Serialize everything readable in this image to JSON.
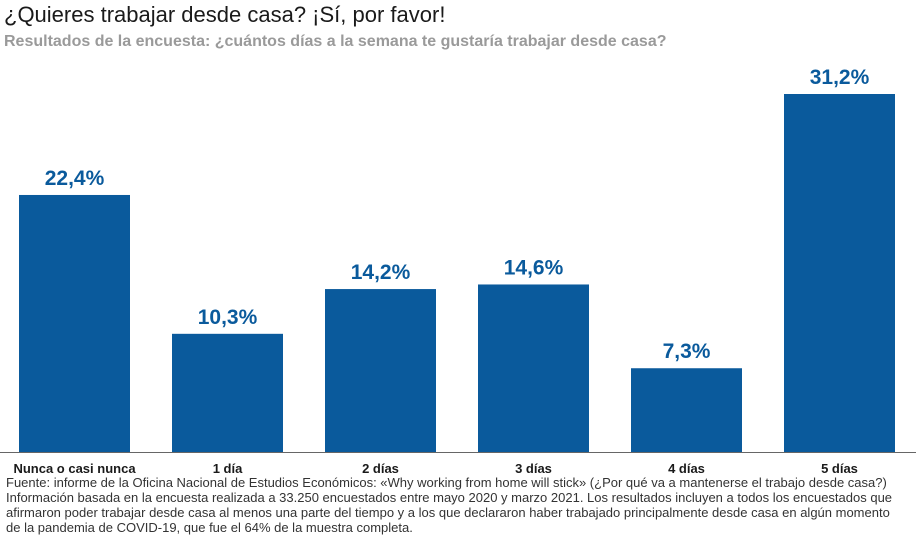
{
  "title": "¿Quieres trabajar desde casa? ¡Sí, por favor!",
  "subtitle": "Resultados de la encuesta: ¿cuántos días a la semana te gustaría trabajar desde casa?",
  "source": "Fuente: informe de la Oficina Nacional de Estudios Económicos: «Why working from home will stick» (¿Por qué va a mantenerse el trabajo desde casa?) Información basada en la encuesta realizada a 33.250 encuestados entre mayo 2020 y marzo 2021. Los resultados incluyen a todos los encuestados que afirmaron poder trabajar desde casa al menos una parte del tiempo y a los que declararon haber trabajado principalmente desde casa en algún momento de la pandemia de COVID-19, que fue el 64% de la muestra completa.",
  "colors": {
    "bar": "#0a5a9c",
    "value_label": "#0a5a9c",
    "axis": "#666666"
  },
  "chart_data": {
    "type": "bar",
    "title": "¿Quieres trabajar desde casa? ¡Sí, por favor!",
    "categories": [
      "Nunca o casi nunca",
      "1 día",
      "2 días",
      "3 días",
      "4 días",
      "5 días"
    ],
    "values": [
      22.4,
      10.3,
      14.2,
      14.6,
      7.3,
      31.2
    ],
    "value_labels": [
      "22,4%",
      "10,3%",
      "14,2%",
      "14,6%",
      "7,3%",
      "31,2%"
    ],
    "xlabel": "",
    "ylabel": "",
    "ylim": [
      0,
      31.2
    ],
    "grid": false
  }
}
